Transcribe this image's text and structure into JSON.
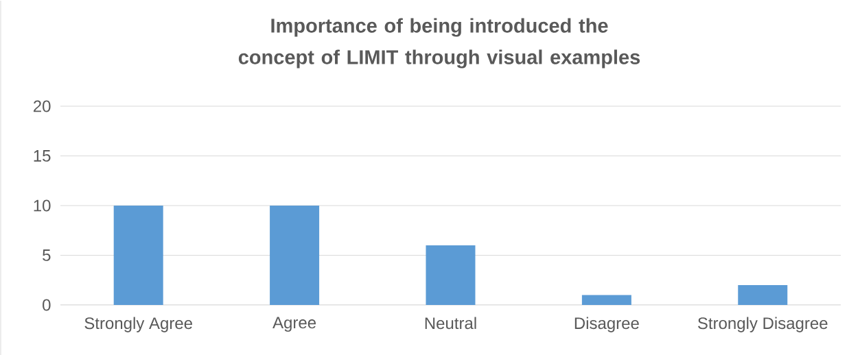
{
  "chart_data": {
    "type": "bar",
    "title": "Importance of being introduced the concept of LIMIT through visual examples",
    "categories": [
      "Strongly Agree",
      "Agree",
      "Neutral",
      "Disagree",
      "Strongly Disagree"
    ],
    "values": [
      10,
      10,
      6,
      1,
      2
    ],
    "color": "#5b9bd5",
    "ylim": [
      0,
      20
    ],
    "yticks": [
      0,
      5,
      10,
      15,
      20
    ],
    "grid": "y"
  }
}
